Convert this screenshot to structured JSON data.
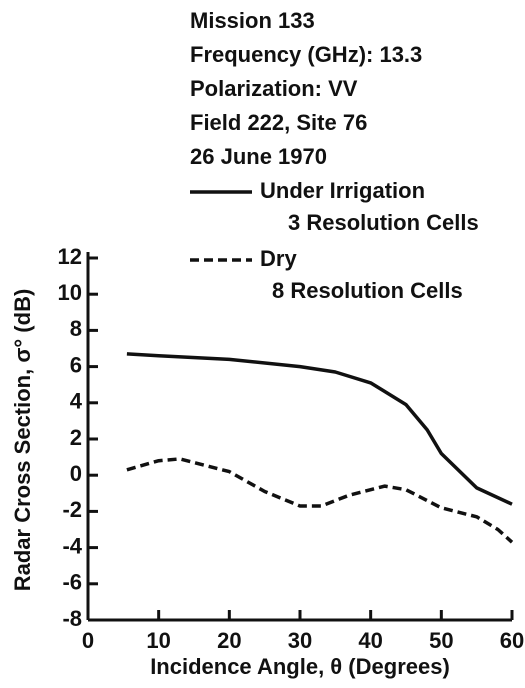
{
  "chart_data": {
    "type": "line",
    "annotations": [
      "Mission 133",
      "Frequency (GHz):  13.3",
      "Polarization:  VV",
      "Field 222, Site 76",
      "26 June 1970"
    ],
    "xlabel": "Incidence Angle, θ (Degrees)",
    "ylabel": "Radar Cross Section, σ° (dB)",
    "xlim": [
      0,
      60
    ],
    "xticks": [
      0,
      10,
      20,
      30,
      40,
      50,
      60
    ],
    "ylim": [
      -8,
      12
    ],
    "yticks": [
      -8,
      -6,
      -4,
      -2,
      0,
      2,
      4,
      6,
      8,
      10,
      12
    ],
    "series": [
      {
        "name": "Under Irrigation",
        "detail": "3 Resolution Cells",
        "color": "#111111",
        "dash": "solid",
        "x": [
          5.5,
          10,
          20,
          30,
          35,
          40,
          45,
          48,
          50,
          55,
          60
        ],
        "values": [
          6.7,
          6.6,
          6.4,
          6.0,
          5.7,
          5.1,
          3.9,
          2.5,
          1.2,
          -0.7,
          -1.6
        ]
      },
      {
        "name": "Dry",
        "detail": "8 Resolution Cells",
        "color": "#111111",
        "dash": "dashed",
        "x": [
          5.5,
          10,
          13,
          20,
          25,
          30,
          33,
          37,
          42,
          45,
          50,
          55,
          58,
          60
        ],
        "values": [
          0.3,
          0.8,
          0.9,
          0.2,
          -0.9,
          -1.7,
          -1.7,
          -1.1,
          -0.6,
          -0.8,
          -1.8,
          -2.3,
          -3.0,
          -3.7
        ]
      }
    ]
  }
}
